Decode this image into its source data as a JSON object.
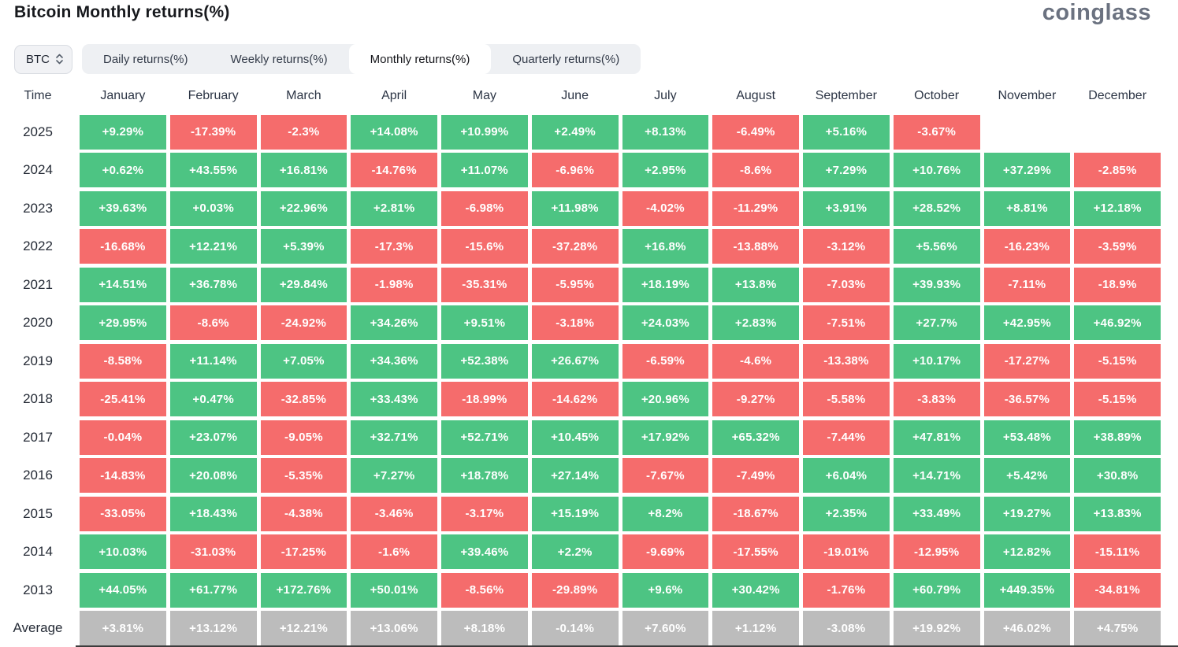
{
  "header": {
    "title": "Bitcoin Monthly returns(%)",
    "logo": "coinglass"
  },
  "controls": {
    "symbol_select": {
      "value": "BTC",
      "icon": "chevron-up-down-icon"
    },
    "tabs": [
      {
        "label": "Daily returns(%)",
        "active": false
      },
      {
        "label": "Weekly returns(%)",
        "active": false
      },
      {
        "label": "Monthly returns(%)",
        "active": true
      },
      {
        "label": "Quarterly returns(%)",
        "active": false
      }
    ]
  },
  "colors": {
    "positive": "#4dc483",
    "negative": "#f56c6c",
    "average": "#bcbcbc",
    "logo_gray": "#6b7280"
  },
  "chart_data": {
    "type": "heatmap",
    "title": "Bitcoin Monthly returns(%)",
    "legend": "green = positive monthly return, red = negative monthly return, gray = column average",
    "columns": [
      "Time",
      "January",
      "February",
      "March",
      "April",
      "May",
      "June",
      "July",
      "August",
      "September",
      "October",
      "November",
      "December"
    ],
    "rows": [
      {
        "label": "2025",
        "values": [
          "+9.29%",
          "-17.39%",
          "-2.3%",
          "+14.08%",
          "+10.99%",
          "+2.49%",
          "+8.13%",
          "-6.49%",
          "+5.16%",
          "-3.67%",
          null,
          null
        ]
      },
      {
        "label": "2024",
        "values": [
          "+0.62%",
          "+43.55%",
          "+16.81%",
          "-14.76%",
          "+11.07%",
          "-6.96%",
          "+2.95%",
          "-8.6%",
          "+7.29%",
          "+10.76%",
          "+37.29%",
          "-2.85%"
        ]
      },
      {
        "label": "2023",
        "values": [
          "+39.63%",
          "+0.03%",
          "+22.96%",
          "+2.81%",
          "-6.98%",
          "+11.98%",
          "-4.02%",
          "-11.29%",
          "+3.91%",
          "+28.52%",
          "+8.81%",
          "+12.18%"
        ]
      },
      {
        "label": "2022",
        "values": [
          "-16.68%",
          "+12.21%",
          "+5.39%",
          "-17.3%",
          "-15.6%",
          "-37.28%",
          "+16.8%",
          "-13.88%",
          "-3.12%",
          "+5.56%",
          "-16.23%",
          "-3.59%"
        ]
      },
      {
        "label": "2021",
        "values": [
          "+14.51%",
          "+36.78%",
          "+29.84%",
          "-1.98%",
          "-35.31%",
          "-5.95%",
          "+18.19%",
          "+13.8%",
          "-7.03%",
          "+39.93%",
          "-7.11%",
          "-18.9%"
        ]
      },
      {
        "label": "2020",
        "values": [
          "+29.95%",
          "-8.6%",
          "-24.92%",
          "+34.26%",
          "+9.51%",
          "-3.18%",
          "+24.03%",
          "+2.83%",
          "-7.51%",
          "+27.7%",
          "+42.95%",
          "+46.92%"
        ]
      },
      {
        "label": "2019",
        "values": [
          "-8.58%",
          "+11.14%",
          "+7.05%",
          "+34.36%",
          "+52.38%",
          "+26.67%",
          "-6.59%",
          "-4.6%",
          "-13.38%",
          "+10.17%",
          "-17.27%",
          "-5.15%"
        ]
      },
      {
        "label": "2018",
        "values": [
          "-25.41%",
          "+0.47%",
          "-32.85%",
          "+33.43%",
          "-18.99%",
          "-14.62%",
          "+20.96%",
          "-9.27%",
          "-5.58%",
          "-3.83%",
          "-36.57%",
          "-5.15%"
        ]
      },
      {
        "label": "2017",
        "values": [
          "-0.04%",
          "+23.07%",
          "-9.05%",
          "+32.71%",
          "+52.71%",
          "+10.45%",
          "+17.92%",
          "+65.32%",
          "-7.44%",
          "+47.81%",
          "+53.48%",
          "+38.89%"
        ]
      },
      {
        "label": "2016",
        "values": [
          "-14.83%",
          "+20.08%",
          "-5.35%",
          "+7.27%",
          "+18.78%",
          "+27.14%",
          "-7.67%",
          "-7.49%",
          "+6.04%",
          "+14.71%",
          "+5.42%",
          "+30.8%"
        ]
      },
      {
        "label": "2015",
        "values": [
          "-33.05%",
          "+18.43%",
          "-4.38%",
          "-3.46%",
          "-3.17%",
          "+15.19%",
          "+8.2%",
          "-18.67%",
          "+2.35%",
          "+33.49%",
          "+19.27%",
          "+13.83%"
        ]
      },
      {
        "label": "2014",
        "values": [
          "+10.03%",
          "-31.03%",
          "-17.25%",
          "-1.6%",
          "+39.46%",
          "+2.2%",
          "-9.69%",
          "-17.55%",
          "-19.01%",
          "-12.95%",
          "+12.82%",
          "-15.11%"
        ]
      },
      {
        "label": "2013",
        "values": [
          "+44.05%",
          "+61.77%",
          "+172.76%",
          "+50.01%",
          "-8.56%",
          "-29.89%",
          "+9.6%",
          "+30.42%",
          "-1.76%",
          "+60.79%",
          "+449.35%",
          "-34.81%"
        ]
      },
      {
        "label": "Average",
        "values": [
          "+3.81%",
          "+13.12%",
          "+12.21%",
          "+13.06%",
          "+8.18%",
          "-0.14%",
          "+7.60%",
          "+1.12%",
          "-3.08%",
          "+19.92%",
          "+46.02%",
          "+4.75%"
        ],
        "is_average": true
      }
    ]
  }
}
